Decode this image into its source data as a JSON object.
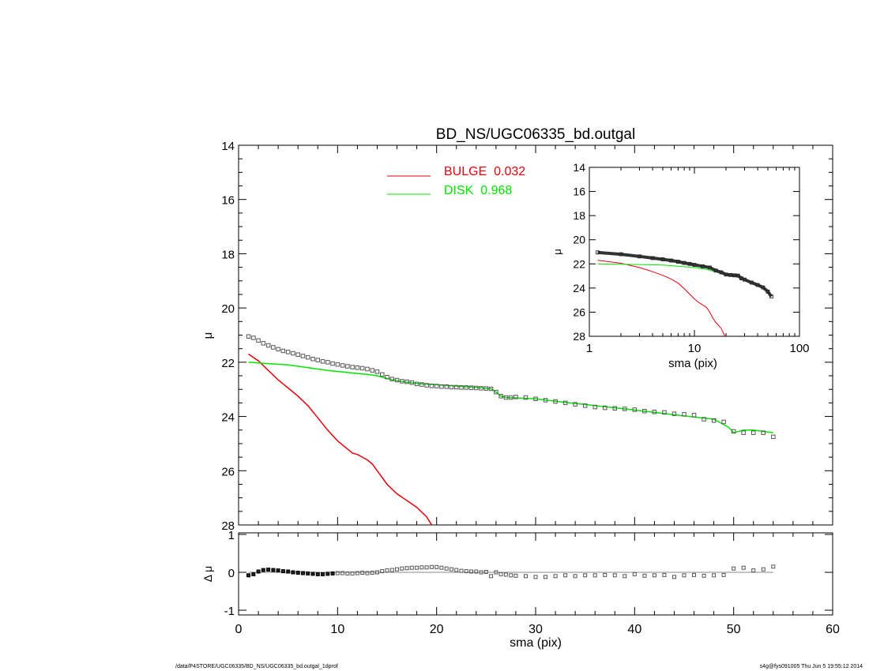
{
  "colors": {
    "bulge": "#e8000b",
    "disk": "#00e600",
    "data": "#555555",
    "axis": "#000000",
    "residual_line": "#888888"
  },
  "footer": {
    "left": "/data/P4STORE/UGC06335/BD_NS/UGC06335_bd.outgal_1dprof",
    "right": "s4g@fys091005  Thu Jun  5 19:55:12 2014"
  },
  "chart_data": [
    {
      "panel": "main",
      "type": "line",
      "title": "BD_NS/UGC06335_bd.outgal",
      "ylabel": "μ",
      "xlim": [
        0,
        60
      ],
      "ylim": [
        14,
        28
      ],
      "y_reversed": true,
      "yticks": [
        "14",
        "16",
        "18",
        "20",
        "22",
        "24",
        "26",
        "28"
      ],
      "legend": {
        "position": "top-center",
        "entries": [
          {
            "label": "BULGE  0.032",
            "series": "bulge"
          },
          {
            "label": "DISK  0.968",
            "series": "disk"
          }
        ]
      },
      "series": [
        {
          "key": "data",
          "style": "open-squares",
          "x": [
            1.0,
            1.5,
            2.0,
            2.5,
            3.0,
            3.5,
            4.0,
            4.5,
            5.0,
            5.5,
            6.0,
            6.5,
            7.0,
            7.5,
            8.0,
            8.5,
            9.0,
            9.5,
            10.0,
            10.5,
            11.0,
            11.5,
            12.0,
            12.5,
            13.0,
            13.5,
            14.0,
            14.5,
            15.0,
            15.5,
            16.0,
            16.5,
            17.0,
            17.5,
            18.0,
            18.5,
            19.0,
            19.5,
            20.0,
            20.5,
            21.0,
            21.5,
            22.0,
            22.5,
            23.0,
            23.5,
            24.0,
            24.5,
            25.0,
            25.5,
            26.0,
            26.5,
            27.0,
            27.5,
            28.0,
            29.0,
            30.0,
            31.0,
            32.0,
            33.0,
            34.0,
            35.0,
            36.0,
            37.0,
            38.0,
            39.0,
            40.0,
            41.0,
            42.0,
            43.0,
            44.0,
            45.0,
            46.0,
            47.0,
            48.0,
            49.0,
            50.0,
            51.0,
            52.0,
            53.0,
            54.0
          ],
          "y": [
            21.05,
            21.1,
            21.2,
            21.3,
            21.38,
            21.45,
            21.52,
            21.58,
            21.62,
            21.67,
            21.72,
            21.77,
            21.82,
            21.88,
            21.92,
            21.97,
            22.0,
            22.05,
            22.08,
            22.12,
            22.15,
            22.18,
            22.2,
            22.22,
            22.25,
            22.3,
            22.35,
            22.45,
            22.55,
            22.62,
            22.66,
            22.7,
            22.72,
            22.75,
            22.8,
            22.82,
            22.85,
            22.87,
            22.88,
            22.9,
            22.9,
            22.92,
            22.92,
            22.93,
            22.93,
            22.94,
            22.95,
            22.96,
            22.97,
            22.98,
            23.1,
            23.25,
            23.3,
            23.3,
            23.28,
            23.3,
            23.35,
            23.4,
            23.45,
            23.5,
            23.55,
            23.6,
            23.65,
            23.68,
            23.7,
            23.72,
            23.75,
            23.8,
            23.83,
            23.85,
            23.9,
            23.92,
            23.95,
            24.1,
            24.15,
            24.2,
            24.55,
            24.6,
            24.6,
            24.6,
            24.75
          ]
        },
        {
          "key": "bulge",
          "style": "line",
          "x": [
            1.0,
            2.0,
            3.0,
            4.0,
            5.0,
            6.0,
            7.0,
            8.0,
            9.0,
            10.0,
            11.0,
            11.5,
            12.0,
            12.5,
            13.0,
            13.5,
            14.0,
            15.0,
            16.0,
            17.0,
            18.0,
            19.0,
            19.5
          ],
          "y": [
            21.7,
            21.95,
            22.3,
            22.65,
            22.95,
            23.25,
            23.6,
            24.05,
            24.5,
            24.9,
            25.2,
            25.35,
            25.4,
            25.5,
            25.6,
            25.75,
            26.0,
            26.5,
            26.85,
            27.1,
            27.35,
            27.7,
            28.0
          ]
        },
        {
          "key": "disk",
          "style": "line",
          "x": [
            1.0,
            3.0,
            5.0,
            7.0,
            9.0,
            11.0,
            13.0,
            14.0,
            15.0,
            16.0,
            17.0,
            18.0,
            20.0,
            22.0,
            24.0,
            25.5,
            26.0,
            26.5,
            27.0,
            30.0,
            33.0,
            36.0,
            39.0,
            42.0,
            45.0,
            48.0,
            49.0,
            49.5,
            50.0,
            51.0,
            52.0,
            53.0,
            54.0
          ],
          "y": [
            22.0,
            22.05,
            22.1,
            22.2,
            22.3,
            22.38,
            22.45,
            22.5,
            22.6,
            22.68,
            22.74,
            22.78,
            22.83,
            22.88,
            22.93,
            22.98,
            23.1,
            23.25,
            23.3,
            23.35,
            23.48,
            23.6,
            23.72,
            23.85,
            23.98,
            24.1,
            24.3,
            24.4,
            24.6,
            24.5,
            24.5,
            24.55,
            24.6
          ]
        }
      ]
    },
    {
      "panel": "inset",
      "type": "line",
      "xlabel": "sma (pix)",
      "ylabel": "μ",
      "xscale": "log",
      "xlim": [
        1,
        100
      ],
      "xticks": [
        "1",
        "10",
        "100"
      ],
      "ylim": [
        14,
        28
      ],
      "y_reversed": true,
      "yticks": [
        "14",
        "16",
        "18",
        "20",
        "22",
        "24",
        "26",
        "28"
      ],
      "series": [
        {
          "key": "data",
          "style": "thick-line",
          "x": [
            1.2,
            2,
            3,
            4,
            5,
            6,
            7,
            8,
            9,
            10,
            12,
            14,
            16,
            18,
            20,
            22,
            24,
            26,
            28,
            30,
            35,
            40,
            45,
            50,
            54
          ],
          "y": [
            21.05,
            21.2,
            21.38,
            21.52,
            21.62,
            21.72,
            21.82,
            21.92,
            22.0,
            22.08,
            22.2,
            22.3,
            22.55,
            22.7,
            22.88,
            22.92,
            22.95,
            22.97,
            23.2,
            23.3,
            23.55,
            23.75,
            23.95,
            24.3,
            24.7
          ]
        },
        {
          "key": "bulge",
          "style": "line",
          "x": [
            1.2,
            2,
            3,
            4,
            5,
            6,
            7,
            8,
            9,
            10,
            11,
            12,
            13,
            14,
            15,
            16,
            17,
            18,
            19.5
          ],
          "y": [
            21.7,
            21.95,
            22.3,
            22.65,
            22.95,
            23.25,
            23.6,
            24.05,
            24.5,
            24.9,
            25.2,
            25.4,
            25.6,
            26.0,
            26.5,
            26.85,
            27.1,
            27.35,
            28.0
          ]
        },
        {
          "key": "disk",
          "style": "line",
          "x": [
            1.2,
            2,
            3,
            5,
            7,
            10,
            13,
            16,
            20
          ],
          "y": [
            22.0,
            22.03,
            22.05,
            22.1,
            22.2,
            22.3,
            22.45,
            22.68,
            22.85
          ]
        }
      ]
    },
    {
      "panel": "residual",
      "type": "scatter",
      "xlabel": "sma (pix)",
      "ylabel": "Δ μ",
      "xlim": [
        0,
        60
      ],
      "xticks": [
        "0",
        "10",
        "20",
        "30",
        "40",
        "50",
        "60"
      ],
      "ylim": [
        -1,
        1
      ],
      "yticks": [
        "1",
        "0",
        "-1"
      ],
      "zero_line": true,
      "series": [
        {
          "key": "residual",
          "style": "open-squares",
          "x": [
            1.0,
            1.5,
            2.0,
            2.5,
            3.0,
            3.5,
            4.0,
            4.5,
            5.0,
            5.5,
            6.0,
            6.5,
            7.0,
            7.5,
            8.0,
            8.5,
            9.0,
            9.5,
            10.0,
            10.5,
            11.0,
            11.5,
            12.0,
            12.5,
            13.0,
            13.5,
            14.0,
            14.5,
            15.0,
            15.5,
            16.0,
            16.5,
            17.0,
            17.5,
            18.0,
            18.5,
            19.0,
            19.5,
            20.0,
            20.5,
            21.0,
            21.5,
            22.0,
            22.5,
            23.0,
            23.5,
            24.0,
            24.5,
            25.0,
            25.5,
            26.0,
            26.5,
            27.0,
            27.5,
            28.0,
            29.0,
            30.0,
            31.0,
            32.0,
            33.0,
            34.0,
            35.0,
            36.0,
            37.0,
            38.0,
            39.0,
            40.0,
            41.0,
            42.0,
            43.0,
            44.0,
            45.0,
            46.0,
            47.0,
            48.0,
            49.0,
            50.0,
            51.0,
            52.0,
            53.0,
            54.0
          ],
          "y": [
            -0.08,
            -0.05,
            0.02,
            0.06,
            0.07,
            0.06,
            0.05,
            0.03,
            0.02,
            0.0,
            -0.01,
            -0.02,
            -0.03,
            -0.04,
            -0.05,
            -0.05,
            -0.04,
            -0.03,
            -0.02,
            -0.02,
            -0.03,
            -0.03,
            -0.02,
            -0.01,
            -0.02,
            -0.01,
            0.0,
            0.03,
            0.05,
            0.06,
            0.08,
            0.1,
            0.11,
            0.12,
            0.12,
            0.13,
            0.13,
            0.14,
            0.14,
            0.12,
            0.1,
            0.08,
            0.06,
            0.04,
            0.03,
            0.02,
            0.02,
            0.0,
            0.01,
            -0.1,
            0.0,
            -0.05,
            -0.06,
            -0.08,
            -0.09,
            -0.1,
            -0.12,
            -0.12,
            -0.1,
            -0.08,
            -0.1,
            -0.08,
            -0.08,
            -0.07,
            -0.08,
            -0.1,
            -0.05,
            -0.09,
            -0.08,
            -0.07,
            -0.12,
            -0.08,
            -0.07,
            -0.09,
            -0.08,
            -0.07,
            0.1,
            0.12,
            0.05,
            0.08,
            0.15
          ]
        }
      ]
    }
  ]
}
